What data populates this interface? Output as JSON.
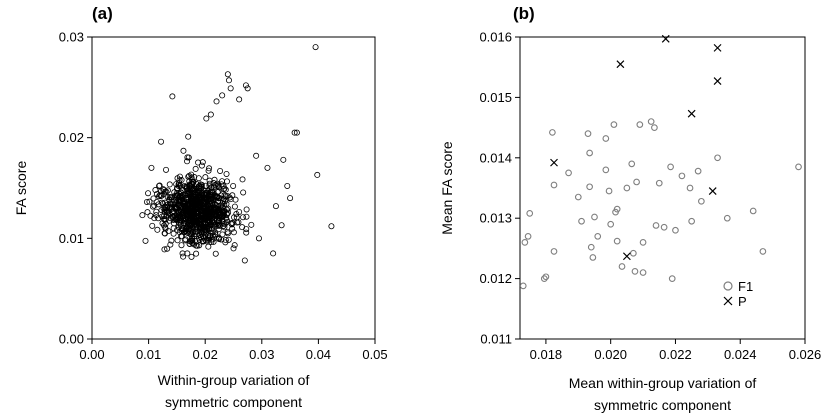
{
  "chart_data": [
    {
      "type": "scatter",
      "panel_label": "(a)",
      "title": "",
      "xlabel_line1": "Within-group variation of",
      "xlabel_line2": "symmetric component",
      "ylabel": "FA score",
      "xlim": [
        0.0,
        0.05
      ],
      "ylim": [
        0.0,
        0.03
      ],
      "xticks": [
        0.0,
        0.01,
        0.02,
        0.03,
        0.04,
        0.05
      ],
      "xtick_labels": [
        "0.00",
        "0.01",
        "0.02",
        "0.03",
        "0.04",
        "0.05"
      ],
      "yticks": [
        0.0,
        0.01,
        0.02,
        0.03
      ],
      "ytick_labels": [
        "0.00",
        "0.01",
        "0.02",
        "0.03"
      ],
      "grid": false,
      "series": [
        {
          "marker": "open-circle",
          "points": [
            [
              0.0395,
              0.029
            ],
            [
              0.024,
              0.0263
            ],
            [
              0.0242,
              0.0257
            ],
            [
              0.0245,
              0.0249
            ],
            [
              0.023,
              0.0242
            ],
            [
              0.0272,
              0.0252
            ],
            [
              0.0275,
              0.0249
            ],
            [
              0.0142,
              0.0241
            ],
            [
              0.022,
              0.0236
            ],
            [
              0.026,
              0.0238
            ],
            [
              0.0358,
              0.0205
            ],
            [
              0.0362,
              0.0205
            ],
            [
              0.0398,
              0.0163
            ],
            [
              0.0423,
              0.0112
            ],
            [
              0.0338,
              0.0178
            ],
            [
              0.0098,
              0.0126
            ],
            [
              0.0105,
              0.017
            ],
            [
              0.0089,
              0.0123
            ],
            [
              0.0345,
              0.0152
            ],
            [
              0.032,
              0.0085
            ],
            [
              0.027,
              0.0078
            ],
            [
              0.0335,
              0.0113
            ],
            [
              0.0325,
              0.0132
            ],
            [
              0.031,
              0.017
            ],
            [
              0.029,
              0.0182
            ],
            [
              0.0122,
              0.0196
            ],
            [
              0.017,
              0.0201
            ],
            [
              0.0202,
              0.0219
            ],
            [
              0.021,
              0.0223
            ],
            [
              0.035,
              0.014
            ],
            [
              0.0295,
              0.01
            ],
            [
              0.0112,
              0.0148
            ],
            [
              0.0128,
              0.0089
            ],
            [
              0.016,
              0.0085
            ],
            [
              0.025,
              0.009
            ]
          ]
        }
      ],
      "dense_cluster": {
        "center": [
          0.0185,
          0.0128
        ],
        "spread": [
          0.004,
          0.002
        ],
        "count": 900
      }
    },
    {
      "type": "scatter",
      "panel_label": "(b)",
      "title": "",
      "xlabel_line1": "Mean within-group variation of",
      "xlabel_line2": "symmetric component",
      "ylabel": "Mean FA score",
      "xlim": [
        0.0172,
        0.026
      ],
      "ylim": [
        0.011,
        0.016
      ],
      "xticks": [
        0.018,
        0.02,
        0.022,
        0.024,
        0.026
      ],
      "xtick_labels": [
        "0.018",
        "0.020",
        "0.022",
        "0.024",
        "0.026"
      ],
      "yticks": [
        0.011,
        0.012,
        0.013,
        0.014,
        0.015,
        0.016
      ],
      "ytick_labels": [
        "0.011",
        "0.012",
        "0.013",
        "0.014",
        "0.015",
        "0.016"
      ],
      "grid": false,
      "legend_position": "bottom-right",
      "series": [
        {
          "name": "F1",
          "marker": "open-circle",
          "color": "#7f7f7f",
          "points": [
            [
              0.0173,
              0.01188
            ],
            [
              0.01735,
              0.0126
            ],
            [
              0.01745,
              0.0127
            ],
            [
              0.0175,
              0.01308
            ],
            [
              0.01795,
              0.012
            ],
            [
              0.018,
              0.01203
            ],
            [
              0.0182,
              0.01442
            ],
            [
              0.01825,
              0.01355
            ],
            [
              0.01825,
              0.01245
            ],
            [
              0.0187,
              0.01375
            ],
            [
              0.019,
              0.01335
            ],
            [
              0.0191,
              0.01295
            ],
            [
              0.0193,
              0.0144
            ],
            [
              0.01935,
              0.01408
            ],
            [
              0.01935,
              0.01352
            ],
            [
              0.0194,
              0.01252
            ],
            [
              0.01945,
              0.01235
            ],
            [
              0.0195,
              0.01302
            ],
            [
              0.0196,
              0.0127
            ],
            [
              0.01985,
              0.01432
            ],
            [
              0.01985,
              0.0138
            ],
            [
              0.01995,
              0.01345
            ],
            [
              0.02,
              0.0129
            ],
            [
              0.0201,
              0.01455
            ],
            [
              0.02015,
              0.0131
            ],
            [
              0.0202,
              0.01315
            ],
            [
              0.0202,
              0.01262
            ],
            [
              0.02035,
              0.0122
            ],
            [
              0.0205,
              0.0135
            ],
            [
              0.02065,
              0.0139
            ],
            [
              0.0207,
              0.01242
            ],
            [
              0.02075,
              0.01212
            ],
            [
              0.0208,
              0.0136
            ],
            [
              0.0209,
              0.01455
            ],
            [
              0.021,
              0.0126
            ],
            [
              0.021,
              0.0121
            ],
            [
              0.02125,
              0.0146
            ],
            [
              0.02135,
              0.0145
            ],
            [
              0.0214,
              0.01288
            ],
            [
              0.0215,
              0.01358
            ],
            [
              0.02165,
              0.01285
            ],
            [
              0.02185,
              0.01385
            ],
            [
              0.0219,
              0.012
            ],
            [
              0.022,
              0.0128
            ],
            [
              0.0222,
              0.0137
            ],
            [
              0.02245,
              0.0135
            ],
            [
              0.0225,
              0.01295
            ],
            [
              0.0227,
              0.01378
            ],
            [
              0.0228,
              0.01328
            ],
            [
              0.0233,
              0.014
            ],
            [
              0.0236,
              0.013
            ],
            [
              0.0244,
              0.01312
            ],
            [
              0.0247,
              0.01245
            ],
            [
              0.0258,
              0.01385
            ]
          ]
        },
        {
          "name": "P",
          "marker": "x",
          "color": "#000000",
          "points": [
            [
              0.01825,
              0.01392
            ],
            [
              0.0203,
              0.01555
            ],
            [
              0.0205,
              0.01237
            ],
            [
              0.0217,
              0.01597
            ],
            [
              0.0225,
              0.01473
            ],
            [
              0.02315,
              0.01345
            ],
            [
              0.0233,
              0.01582
            ],
            [
              0.0233,
              0.01527
            ]
          ]
        }
      ]
    }
  ]
}
